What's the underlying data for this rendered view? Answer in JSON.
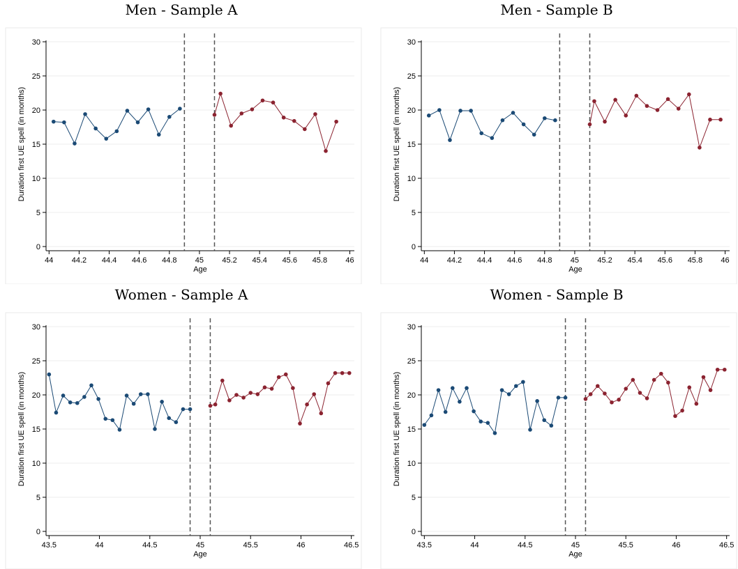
{
  "chart_data": [
    {
      "type": "line",
      "title": "Men - Sample A",
      "xlabel": "Age",
      "ylabel": "Duration first UE spell (in months)",
      "xlim": [
        43.98,
        46.03
      ],
      "ylim": [
        0,
        30
      ],
      "xticks": [
        44,
        44.2,
        44.4,
        44.6,
        44.8,
        45,
        45.2,
        45.4,
        45.6,
        45.8,
        46
      ],
      "xtick_labels": [
        "44",
        "44.2",
        "44.4",
        "44.6",
        "44.8",
        "45",
        "45.2",
        "45.4",
        "45.6",
        "45.8",
        "46"
      ],
      "yticks": [
        0,
        5,
        10,
        15,
        20,
        25,
        30
      ],
      "ytick_labels": [
        "0",
        "5",
        "10",
        "15",
        "20",
        "25",
        "30"
      ],
      "cutoffs": [
        44.9,
        45.1
      ],
      "grid": true,
      "series": [
        {
          "color": "#1b4a75",
          "x": [
            44.03,
            44.1,
            44.17,
            44.24,
            44.31,
            44.38,
            44.45,
            44.52,
            44.59,
            44.66,
            44.73,
            44.8,
            44.87
          ],
          "y": [
            18.3,
            18.2,
            15.1,
            19.4,
            17.3,
            15.8,
            16.9,
            19.9,
            18.2,
            20.1,
            16.4,
            19.0,
            20.2
          ]
        },
        {
          "color": "#8b2330",
          "x": [
            45.1,
            45.14,
            45.21,
            45.28,
            45.35,
            45.42,
            45.49,
            45.56,
            45.63,
            45.7,
            45.77,
            45.84,
            45.91
          ],
          "y": [
            19.3,
            22.4,
            17.7,
            19.5,
            20.1,
            21.4,
            21.1,
            18.9,
            18.4,
            17.2,
            19.4,
            14.0,
            18.3
          ]
        }
      ]
    },
    {
      "type": "line",
      "title": "Men - Sample B",
      "xlabel": "Age",
      "ylabel": "Duration first UE spell (in months)",
      "xlim": [
        43.98,
        46.03
      ],
      "ylim": [
        0,
        30
      ],
      "xticks": [
        44,
        44.2,
        44.4,
        44.6,
        44.8,
        45,
        45.2,
        45.4,
        45.6,
        45.8,
        46
      ],
      "xtick_labels": [
        "44",
        "44.2",
        "44.4",
        "44.6",
        "44.8",
        "45",
        "45.2",
        "45.4",
        "45.6",
        "45.8",
        "46"
      ],
      "yticks": [
        0,
        5,
        10,
        15,
        20,
        25,
        30
      ],
      "ytick_labels": [
        "0",
        "5",
        "10",
        "15",
        "20",
        "25",
        "30"
      ],
      "cutoffs": [
        44.9,
        45.1
      ],
      "grid": true,
      "series": [
        {
          "color": "#1b4a75",
          "x": [
            44.03,
            44.1,
            44.17,
            44.24,
            44.31,
            44.38,
            44.45,
            44.52,
            44.59,
            44.66,
            44.73,
            44.8,
            44.87
          ],
          "y": [
            19.2,
            20.0,
            15.6,
            19.9,
            19.9,
            16.6,
            15.9,
            18.5,
            19.6,
            17.9,
            16.4,
            18.8,
            18.5
          ]
        },
        {
          "color": "#8b2330",
          "x": [
            45.1,
            45.13,
            45.2,
            45.27,
            45.34,
            45.41,
            45.48,
            45.55,
            45.62,
            45.69,
            45.76,
            45.83,
            45.9,
            45.97
          ],
          "y": [
            17.9,
            21.3,
            18.3,
            21.5,
            19.2,
            22.1,
            20.6,
            20.0,
            21.6,
            20.2,
            22.3,
            14.5,
            18.6,
            18.6
          ]
        }
      ]
    },
    {
      "type": "line",
      "title": "Women - Sample A",
      "xlabel": "Age",
      "ylabel": "Duration first UE spell (in months)",
      "xlim": [
        43.47,
        46.53
      ],
      "ylim": [
        0,
        30
      ],
      "xticks": [
        43.5,
        44,
        44.5,
        45,
        45.5,
        46,
        46.5
      ],
      "xtick_labels": [
        "43.5",
        "44",
        "44.5",
        "45",
        "45.5",
        "46",
        "46.5"
      ],
      "yticks": [
        0,
        5,
        10,
        15,
        20,
        25,
        30
      ],
      "ytick_labels": [
        "0",
        "5",
        "10",
        "15",
        "20",
        "25",
        "30"
      ],
      "cutoffs": [
        44.9,
        45.1
      ],
      "grid": true,
      "series": [
        {
          "color": "#1b4a75",
          "x": [
            43.5,
            43.57,
            43.64,
            43.71,
            43.78,
            43.85,
            43.92,
            43.99,
            44.06,
            44.13,
            44.2,
            44.27,
            44.34,
            44.41,
            44.48,
            44.55,
            44.62,
            44.69,
            44.76,
            44.83,
            44.9
          ],
          "y": [
            23.0,
            17.4,
            19.9,
            18.9,
            18.8,
            19.7,
            21.4,
            19.4,
            16.5,
            16.3,
            14.9,
            19.9,
            18.7,
            20.1,
            20.1,
            15.0,
            19.0,
            16.6,
            16.0,
            17.9,
            17.9
          ]
        },
        {
          "color": "#8b2330",
          "x": [
            45.1,
            45.15,
            45.22,
            45.29,
            45.36,
            45.43,
            45.5,
            45.57,
            45.64,
            45.71,
            45.78,
            45.85,
            45.92,
            45.99,
            46.06,
            46.13,
            46.2,
            46.27,
            46.34,
            46.41,
            46.48
          ],
          "y": [
            18.4,
            18.6,
            22.1,
            19.2,
            20.0,
            19.6,
            20.3,
            20.1,
            21.1,
            20.9,
            22.6,
            23.0,
            21.0,
            15.8,
            18.6,
            20.1,
            17.3,
            21.7,
            23.2,
            23.2,
            23.2
          ]
        }
      ]
    },
    {
      "type": "line",
      "title": "Women - Sample B",
      "xlabel": "Age",
      "ylabel": "Duration first UE spell (in months)",
      "xlim": [
        43.47,
        46.53
      ],
      "ylim": [
        0,
        30
      ],
      "xticks": [
        43.5,
        44,
        44.5,
        45,
        45.5,
        46,
        46.5
      ],
      "xtick_labels": [
        "43.5",
        "44",
        "44.5",
        "45",
        "45.5",
        "46",
        "46.5"
      ],
      "yticks": [
        0,
        5,
        10,
        15,
        20,
        25,
        30
      ],
      "ytick_labels": [
        "0",
        "5",
        "10",
        "15",
        "20",
        "25",
        "30"
      ],
      "cutoffs": [
        44.9,
        45.1
      ],
      "grid": true,
      "series": [
        {
          "color": "#1b4a75",
          "x": [
            43.5,
            43.57,
            43.64,
            43.71,
            43.78,
            43.85,
            43.92,
            43.99,
            44.06,
            44.13,
            44.2,
            44.27,
            44.34,
            44.41,
            44.48,
            44.55,
            44.62,
            44.69,
            44.76,
            44.83,
            44.9
          ],
          "y": [
            15.6,
            17.0,
            20.7,
            17.5,
            21.0,
            19.0,
            21.0,
            17.6,
            16.1,
            15.9,
            14.4,
            20.7,
            20.1,
            21.3,
            21.9,
            14.9,
            19.1,
            16.3,
            15.5,
            19.6,
            19.6
          ]
        },
        {
          "color": "#8b2330",
          "x": [
            45.1,
            45.15,
            45.22,
            45.29,
            45.36,
            45.43,
            45.5,
            45.57,
            45.64,
            45.71,
            45.78,
            45.85,
            45.92,
            45.99,
            46.06,
            46.13,
            46.2,
            46.27,
            46.34,
            46.41,
            46.48
          ],
          "y": [
            19.4,
            20.1,
            21.3,
            20.2,
            18.9,
            19.3,
            20.9,
            22.2,
            20.3,
            19.5,
            22.2,
            23.1,
            21.8,
            16.9,
            17.7,
            21.1,
            18.7,
            22.6,
            20.7,
            23.7,
            23.7
          ]
        }
      ]
    }
  ]
}
